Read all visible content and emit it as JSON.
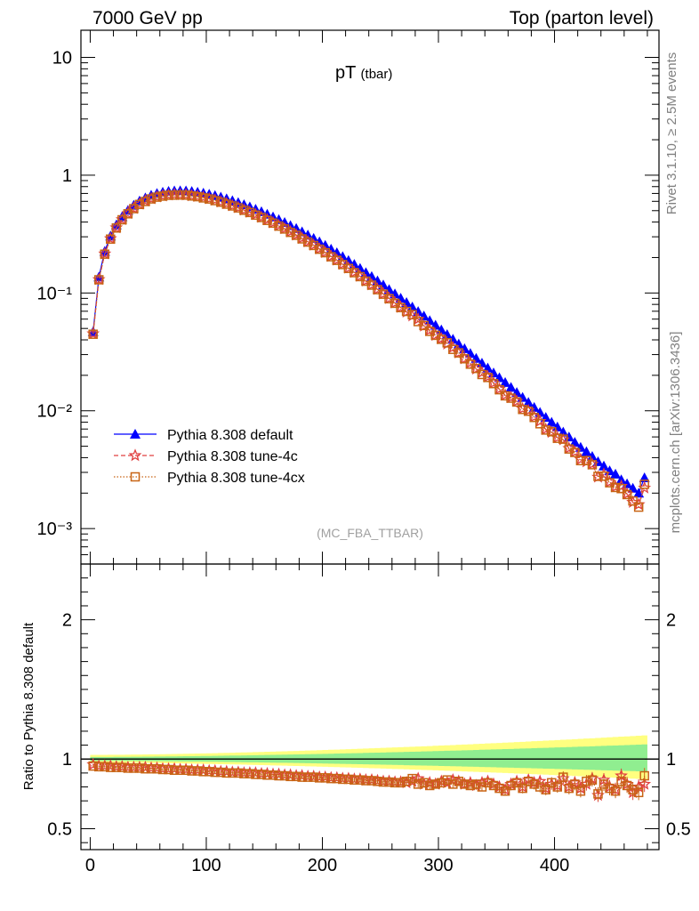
{
  "header": {
    "left": "7000 GeV pp",
    "right": "Top (parton level)"
  },
  "plot": {
    "title": "pT",
    "title_sub": "(tbar)",
    "analysis_tag": "(MC_FBA_TTBAR)",
    "side_text_top": "Rivet 3.1.10, ≥ 2.5M events",
    "side_text_bottom": "mcplots.cern.ch [arXiv:1306.3436]"
  },
  "ratio_panel": {
    "ylabel": "Ratio to Pythia 8.308 default"
  },
  "legend": [
    {
      "label": "Pythia 8.308 default",
      "color": "#0000ff",
      "marker": "triangle",
      "line": "solid"
    },
    {
      "label": "Pythia 8.308 tune-4c",
      "color": "#e04040",
      "marker": "star",
      "line": "dashed"
    },
    {
      "label": "Pythia 8.308 tune-4cx",
      "color": "#c86414",
      "marker": "open-square",
      "line": "dotted"
    }
  ],
  "chart_data": {
    "type": "line",
    "xlim": [
      -8,
      490
    ],
    "main_ylim": [
      0.0005,
      17
    ],
    "main_yscale": "log",
    "main_yticks": [
      "10⁻³",
      "10⁻²",
      "10⁻¹",
      "1",
      "10"
    ],
    "ratio_ylim": [
      0.35,
      2.4
    ],
    "ratio_yticks": [
      "0.5",
      "1",
      "2"
    ],
    "xticks": [
      "0",
      "100",
      "200",
      "300",
      "400"
    ],
    "x": [
      2.5,
      7.5,
      12.5,
      17.5,
      22.5,
      27.5,
      32.5,
      37.5,
      42.5,
      47.5,
      52.5,
      57.5,
      62.5,
      67.5,
      72.5,
      77.5,
      82.5,
      87.5,
      92.5,
      97.5,
      102.5,
      107.5,
      112.5,
      117.5,
      122.5,
      127.5,
      132.5,
      137.5,
      142.5,
      147.5,
      152.5,
      157.5,
      162.5,
      167.5,
      172.5,
      177.5,
      182.5,
      187.5,
      192.5,
      197.5,
      202.5,
      207.5,
      212.5,
      217.5,
      222.5,
      227.5,
      232.5,
      237.5,
      242.5,
      247.5,
      252.5,
      257.5,
      262.5,
      267.5,
      272.5,
      277.5,
      282.5,
      287.5,
      292.5,
      297.5,
      302.5,
      307.5,
      312.5,
      317.5,
      322.5,
      327.5,
      332.5,
      337.5,
      342.5,
      347.5,
      352.5,
      357.5,
      362.5,
      367.5,
      372.5,
      377.5,
      382.5,
      387.5,
      392.5,
      397.5,
      402.5,
      407.5,
      412.5,
      417.5,
      422.5,
      427.5,
      432.5,
      437.5,
      442.5,
      447.5,
      452.5,
      457.5,
      462.5,
      467.5,
      472.5,
      477.5
    ],
    "series": [
      {
        "name": "Pythia 8.308 default",
        "values": [
          0.047,
          0.137,
          0.226,
          0.305,
          0.379,
          0.445,
          0.503,
          0.556,
          0.604,
          0.643,
          0.676,
          0.7,
          0.718,
          0.73,
          0.736,
          0.738,
          0.736,
          0.728,
          0.718,
          0.705,
          0.69,
          0.672,
          0.652,
          0.631,
          0.609,
          0.586,
          0.563,
          0.539,
          0.515,
          0.491,
          0.467,
          0.443,
          0.42,
          0.397,
          0.374,
          0.353,
          0.331,
          0.311,
          0.291,
          0.272,
          0.254,
          0.236,
          0.22,
          0.204,
          0.189,
          0.175,
          0.162,
          0.149,
          0.138,
          0.127,
          0.117,
          0.107,
          0.0985,
          0.0905,
          0.083,
          0.0761,
          0.0697,
          0.0638,
          0.0583,
          0.0533,
          0.0487,
          0.0444,
          0.0405,
          0.0369,
          0.0337,
          0.0307,
          0.0279,
          0.0254,
          0.0231,
          0.021,
          0.0191,
          0.0174,
          0.0158,
          0.0143,
          0.013,
          0.0118,
          0.0107,
          0.0097,
          0.0088,
          0.008,
          0.0073,
          0.0066,
          0.006,
          0.0054,
          0.0049,
          0.0045,
          0.0041,
          0.0037,
          0.0034,
          0.0031,
          0.0029,
          0.0026,
          0.0024,
          0.0022,
          0.002,
          0.0027
        ]
      },
      {
        "name": "Pythia 8.308 tune-4c",
        "ratio": [
          0.96,
          0.95,
          0.95,
          0.95,
          0.945,
          0.945,
          0.94,
          0.94,
          0.94,
          0.94,
          0.935,
          0.935,
          0.93,
          0.93,
          0.93,
          0.925,
          0.925,
          0.92,
          0.92,
          0.92,
          0.915,
          0.915,
          0.91,
          0.91,
          0.905,
          0.905,
          0.9,
          0.9,
          0.9,
          0.895,
          0.895,
          0.89,
          0.89,
          0.885,
          0.885,
          0.88,
          0.88,
          0.875,
          0.875,
          0.87,
          0.87,
          0.865,
          0.865,
          0.86,
          0.86,
          0.855,
          0.855,
          0.85,
          0.85,
          0.845,
          0.84,
          0.84,
          0.835,
          0.835,
          0.83,
          0.84,
          0.86,
          0.82,
          0.83,
          0.82,
          0.84,
          0.83,
          0.85,
          0.84,
          0.82,
          0.83,
          0.81,
          0.83,
          0.84,
          0.82,
          0.8,
          0.78,
          0.82,
          0.84,
          0.8,
          0.85,
          0.83,
          0.84,
          0.79,
          0.82,
          0.81,
          0.86,
          0.8,
          0.83,
          0.79,
          0.82,
          0.86,
          0.74,
          0.85,
          0.8,
          0.78,
          0.88,
          0.82,
          0.76,
          0.8,
          0.82
        ]
      },
      {
        "name": "Pythia 8.308 tune-4cx",
        "ratio": [
          0.95,
          0.945,
          0.945,
          0.94,
          0.94,
          0.94,
          0.935,
          0.935,
          0.935,
          0.93,
          0.93,
          0.93,
          0.925,
          0.925,
          0.92,
          0.92,
          0.92,
          0.915,
          0.915,
          0.91,
          0.91,
          0.905,
          0.905,
          0.9,
          0.9,
          0.9,
          0.895,
          0.895,
          0.89,
          0.89,
          0.885,
          0.885,
          0.88,
          0.88,
          0.875,
          0.875,
          0.87,
          0.87,
          0.87,
          0.865,
          0.865,
          0.86,
          0.86,
          0.855,
          0.855,
          0.85,
          0.85,
          0.845,
          0.845,
          0.84,
          0.835,
          0.835,
          0.83,
          0.83,
          0.84,
          0.86,
          0.82,
          0.83,
          0.81,
          0.82,
          0.83,
          0.85,
          0.82,
          0.84,
          0.82,
          0.81,
          0.82,
          0.8,
          0.83,
          0.81,
          0.79,
          0.77,
          0.81,
          0.83,
          0.79,
          0.84,
          0.82,
          0.8,
          0.78,
          0.83,
          0.8,
          0.87,
          0.79,
          0.82,
          0.77,
          0.84,
          0.85,
          0.75,
          0.82,
          0.79,
          0.77,
          0.84,
          0.81,
          0.78,
          0.76,
          0.88
        ]
      }
    ]
  }
}
